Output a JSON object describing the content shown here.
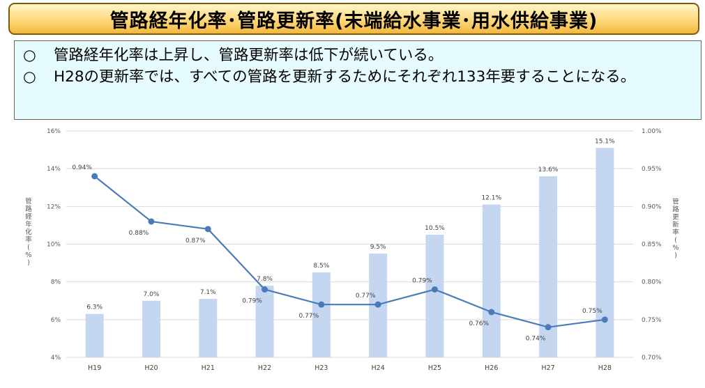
{
  "title": "管路経年化率･管路更新率(末端給水事業･用水供給事業)",
  "notes": [
    {
      "marker": "○",
      "text": "管路経年化率は上昇し、管路更新率は低下が続いている。"
    },
    {
      "marker": "○",
      "text": "H28の更新率では、すべての管路を更新するためにそれぞれ133年要することになる。"
    }
  ],
  "chart_data": {
    "type": "bar+line",
    "categories": [
      "H19",
      "H20",
      "H21",
      "H22",
      "H23",
      "H24",
      "H25",
      "H26",
      "H27",
      "H28"
    ],
    "series": [
      {
        "type": "bar",
        "axis": "left",
        "values": [
          6.3,
          7.0,
          7.1,
          7.8,
          8.5,
          9.5,
          10.5,
          12.1,
          13.6,
          15.1
        ],
        "labels": [
          "6.3%",
          "7.0%",
          "7.1%",
          "7.8%",
          "8.5%",
          "9.5%",
          "10.5%",
          "12.1%",
          "13.6%",
          "15.1%"
        ],
        "color": "#c5d7f0"
      },
      {
        "type": "line",
        "axis": "right",
        "values": [
          0.94,
          0.88,
          0.87,
          0.79,
          0.77,
          0.77,
          0.79,
          0.76,
          0.74,
          0.75
        ],
        "labels": [
          "0.94%",
          "0.88%",
          "0.87%",
          "0.79%",
          "0.77%",
          "0.77%",
          "0.79%",
          "0.76%",
          "0.74%",
          "0.75%"
        ],
        "color": "#4a7ab8"
      }
    ],
    "y_left": {
      "label": "管路経年化率(%)",
      "lim": [
        4,
        16
      ],
      "ticks": [
        "4%",
        "6%",
        "8%",
        "10%",
        "12%",
        "14%",
        "16%"
      ]
    },
    "y_right": {
      "label": "管路更新率(%)",
      "lim": [
        0.7,
        1.0
      ],
      "ticks": [
        "0.70%",
        "0.75%",
        "0.80%",
        "0.85%",
        "0.90%",
        "0.95%",
        "1.00%"
      ]
    },
    "grid": true
  }
}
